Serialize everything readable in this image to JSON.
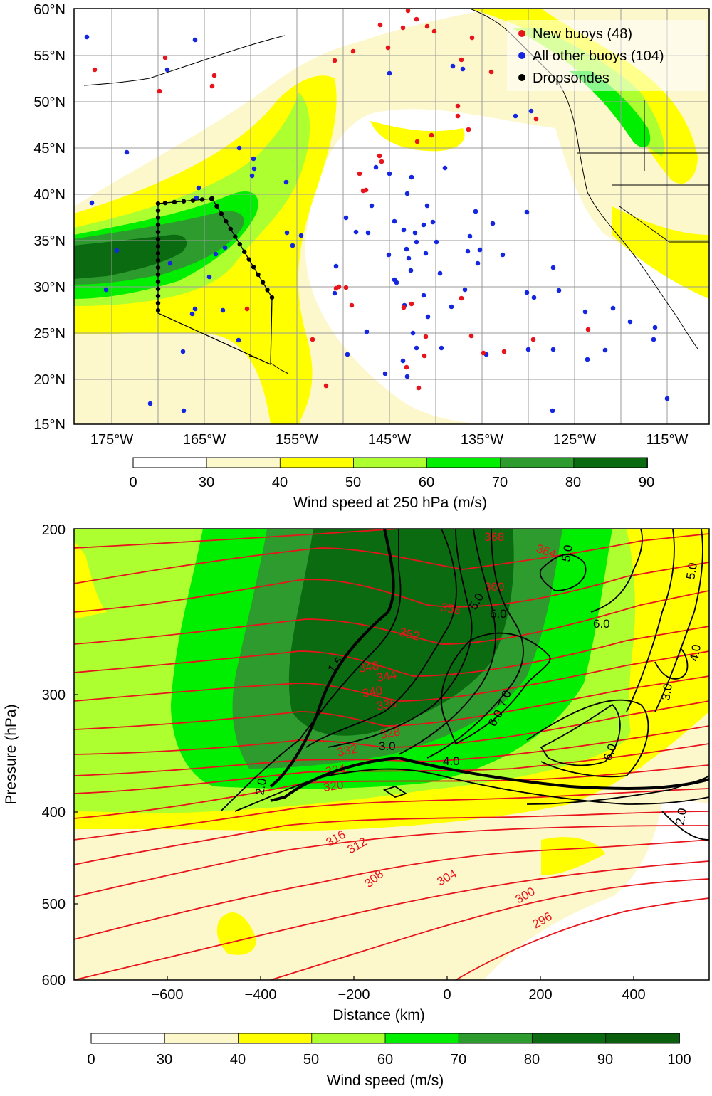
{
  "map_panel": {
    "lat_labels": [
      "60°N",
      "55°N",
      "50°N",
      "45°N",
      "40°N",
      "35°N",
      "30°N",
      "25°N",
      "20°N",
      "15°N"
    ],
    "lon_labels": [
      "175°W",
      "165°W",
      "155°W",
      "145°W",
      "135°W",
      "125°W",
      "115°W"
    ],
    "legend": [
      {
        "label": "New buoys (48)",
        "color": "#e8141c"
      },
      {
        "label": "All other buoys (104)",
        "color": "#1426e0"
      },
      {
        "label": "Dropsondes",
        "color": "#000000"
      }
    ],
    "colorbar": {
      "label": "Wind speed at 250 hPa (m/s)",
      "ticks": [
        "0",
        "30",
        "40",
        "50",
        "60",
        "70",
        "80",
        "90"
      ],
      "colors": [
        "#ffffff",
        "#fdf8cc",
        "#ffff00",
        "#adff2f",
        "#00ee00",
        "#2e9b2e",
        "#0b6b10"
      ]
    }
  },
  "section_panel": {
    "y_label": "Pressure (hPa)",
    "x_label": "Distance (km)",
    "y_ticks": [
      "200",
      "300",
      "400",
      "500",
      "600"
    ],
    "x_ticks": [
      "−600",
      "−400",
      "−200",
      "0",
      "200",
      "400"
    ],
    "theta_labels": [
      "356",
      "352",
      "348",
      "344",
      "340",
      "336",
      "332",
      "328",
      "324",
      "320",
      "316",
      "312",
      "308",
      "304",
      "300",
      "296",
      "360",
      "364",
      "368"
    ],
    "pv_labels": [
      "1.5",
      "2.0",
      "3.0",
      "4.0",
      "5.0",
      "6.0",
      "7.0"
    ],
    "colorbar": {
      "label": "Wind speed (m/s)",
      "ticks": [
        "0",
        "30",
        "40",
        "50",
        "60",
        "70",
        "80",
        "90",
        "100"
      ],
      "colors": [
        "#ffffff",
        "#fdf8cc",
        "#ffff00",
        "#adff2f",
        "#00ee00",
        "#2e9b2e",
        "#0b6b10",
        "#0b5e0e"
      ]
    }
  }
}
